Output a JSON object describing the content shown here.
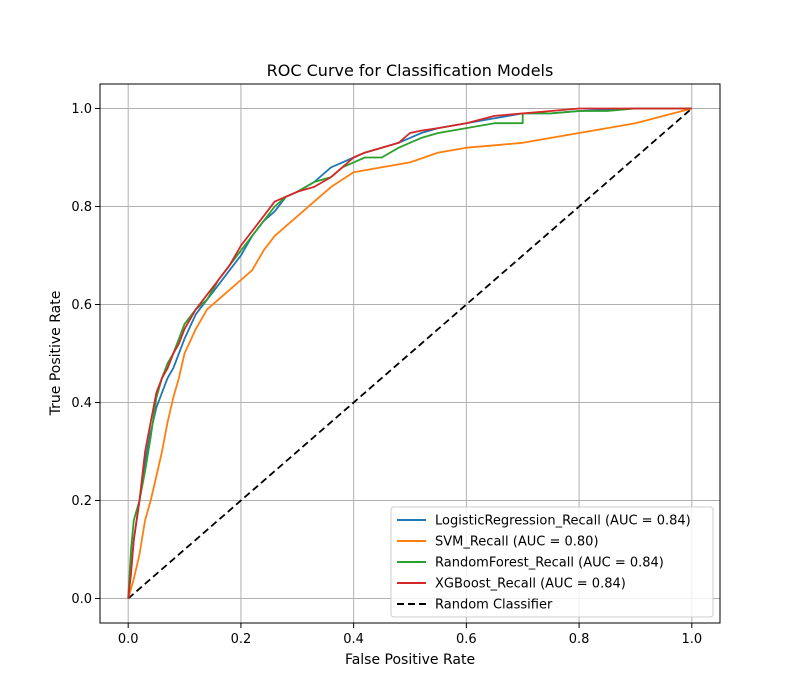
{
  "chart_data": {
    "type": "line",
    "title": "ROC Curve for Classification Models",
    "xlabel": "False Positive Rate",
    "ylabel": "True Positive Rate",
    "xlim": [
      -0.05,
      1.05
    ],
    "ylim": [
      -0.05,
      1.05
    ],
    "xticks": [
      "0.0",
      "0.2",
      "0.4",
      "0.6",
      "0.8",
      "1.0"
    ],
    "yticks": [
      "0.0",
      "0.2",
      "0.4",
      "0.6",
      "0.8",
      "1.0"
    ],
    "grid": true,
    "legend_position": "lower-right",
    "series": [
      {
        "name": "LogisticRegression_Recall (AUC = 0.84)",
        "color": "#1f77b4",
        "style": "solid",
        "x": [
          0,
          0.005,
          0.01,
          0.02,
          0.03,
          0.04,
          0.05,
          0.06,
          0.07,
          0.08,
          0.09,
          0.1,
          0.12,
          0.14,
          0.16,
          0.18,
          0.2,
          0.22,
          0.24,
          0.26,
          0.28,
          0.3,
          0.33,
          0.36,
          0.38,
          0.4,
          0.42,
          0.45,
          0.48,
          0.5,
          0.52,
          0.55,
          0.6,
          0.65,
          0.7,
          0.75,
          0.8,
          0.85,
          0.9,
          0.95,
          1.0
        ],
        "y": [
          0,
          0.06,
          0.12,
          0.2,
          0.28,
          0.34,
          0.39,
          0.42,
          0.45,
          0.47,
          0.5,
          0.53,
          0.58,
          0.61,
          0.64,
          0.67,
          0.7,
          0.74,
          0.77,
          0.79,
          0.82,
          0.83,
          0.85,
          0.88,
          0.89,
          0.9,
          0.91,
          0.92,
          0.93,
          0.94,
          0.95,
          0.96,
          0.97,
          0.98,
          0.99,
          0.99,
          0.995,
          0.998,
          1.0,
          1.0,
          1.0
        ]
      },
      {
        "name": "SVM_Recall (AUC = 0.80)",
        "color": "#ff7f0e",
        "style": "solid",
        "x": [
          0,
          0.01,
          0.02,
          0.03,
          0.04,
          0.05,
          0.06,
          0.07,
          0.08,
          0.09,
          0.1,
          0.12,
          0.14,
          0.16,
          0.18,
          0.2,
          0.22,
          0.24,
          0.26,
          0.28,
          0.3,
          0.33,
          0.36,
          0.4,
          0.45,
          0.5,
          0.55,
          0.6,
          0.65,
          0.7,
          0.75,
          0.8,
          0.85,
          0.9,
          0.95,
          1.0
        ],
        "y": [
          0,
          0.04,
          0.09,
          0.16,
          0.2,
          0.25,
          0.3,
          0.36,
          0.41,
          0.45,
          0.5,
          0.55,
          0.59,
          0.61,
          0.63,
          0.65,
          0.67,
          0.71,
          0.74,
          0.76,
          0.78,
          0.81,
          0.84,
          0.87,
          0.88,
          0.89,
          0.91,
          0.92,
          0.925,
          0.93,
          0.94,
          0.95,
          0.96,
          0.97,
          0.985,
          1.0
        ]
      },
      {
        "name": "RandomForest_Recall (AUC = 0.84)",
        "color": "#2ca02c",
        "style": "solid",
        "x": [
          0,
          0.005,
          0.01,
          0.02,
          0.03,
          0.04,
          0.05,
          0.06,
          0.07,
          0.08,
          0.09,
          0.1,
          0.12,
          0.14,
          0.16,
          0.18,
          0.2,
          0.22,
          0.24,
          0.26,
          0.28,
          0.3,
          0.33,
          0.36,
          0.38,
          0.4,
          0.42,
          0.45,
          0.48,
          0.5,
          0.52,
          0.55,
          0.6,
          0.65,
          0.7,
          0.7,
          0.75,
          0.8,
          0.85,
          0.9,
          0.95,
          1.0
        ],
        "y": [
          0,
          0.1,
          0.16,
          0.2,
          0.26,
          0.33,
          0.41,
          0.45,
          0.48,
          0.5,
          0.53,
          0.56,
          0.59,
          0.61,
          0.65,
          0.68,
          0.71,
          0.74,
          0.77,
          0.8,
          0.82,
          0.83,
          0.85,
          0.86,
          0.88,
          0.89,
          0.9,
          0.9,
          0.92,
          0.93,
          0.94,
          0.95,
          0.96,
          0.97,
          0.97,
          0.99,
          0.99,
          0.995,
          0.995,
          1.0,
          1.0,
          1.0
        ]
      },
      {
        "name": "XGBoost_Recall (AUC = 0.84)",
        "color": "#d62728",
        "style": "solid",
        "x": [
          0,
          0.005,
          0.01,
          0.02,
          0.03,
          0.04,
          0.05,
          0.06,
          0.07,
          0.08,
          0.09,
          0.1,
          0.12,
          0.14,
          0.16,
          0.18,
          0.2,
          0.22,
          0.24,
          0.26,
          0.28,
          0.3,
          0.33,
          0.36,
          0.38,
          0.4,
          0.42,
          0.45,
          0.48,
          0.5,
          0.52,
          0.55,
          0.6,
          0.65,
          0.7,
          0.75,
          0.8,
          0.85,
          0.9,
          0.95,
          1.0
        ],
        "y": [
          0,
          0.05,
          0.12,
          0.2,
          0.3,
          0.36,
          0.42,
          0.45,
          0.47,
          0.5,
          0.52,
          0.55,
          0.59,
          0.62,
          0.65,
          0.68,
          0.72,
          0.75,
          0.78,
          0.81,
          0.82,
          0.83,
          0.84,
          0.86,
          0.88,
          0.9,
          0.91,
          0.92,
          0.93,
          0.95,
          0.955,
          0.96,
          0.97,
          0.985,
          0.99,
          0.995,
          1.0,
          1.0,
          1.0,
          1.0,
          1.0
        ]
      },
      {
        "name": "Random Classifier",
        "color": "#000000",
        "style": "dashed",
        "x": [
          0,
          1
        ],
        "y": [
          0,
          1
        ]
      }
    ]
  }
}
